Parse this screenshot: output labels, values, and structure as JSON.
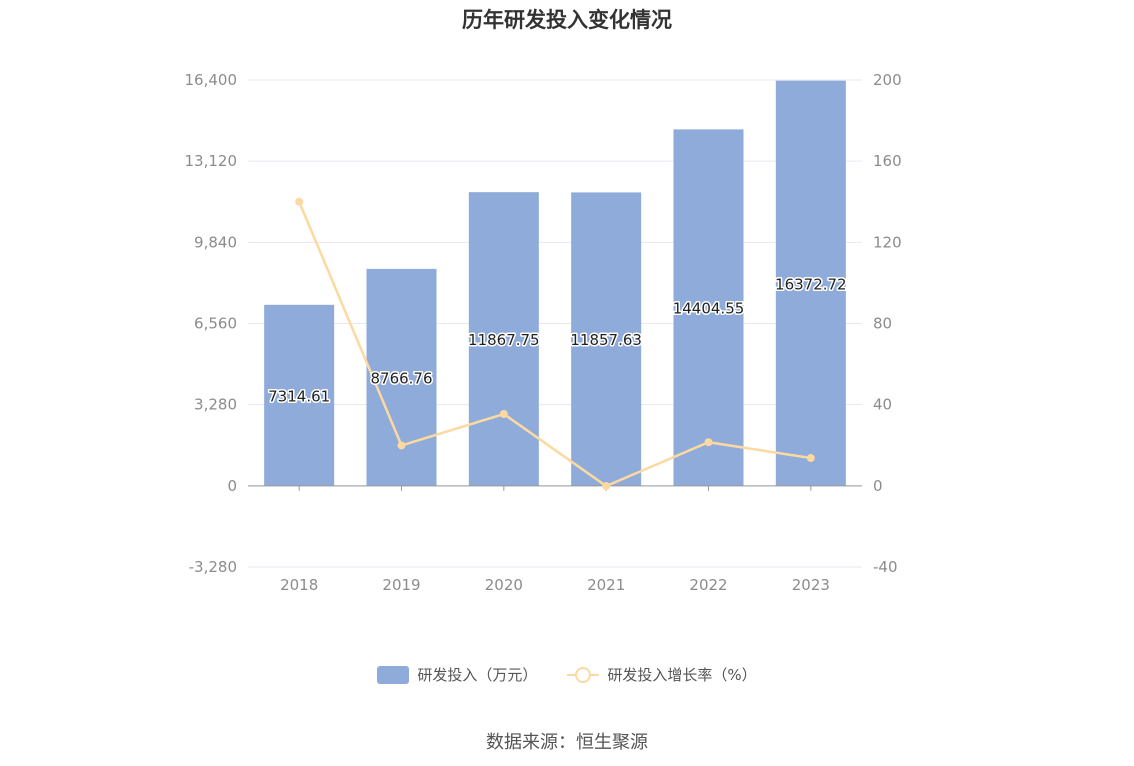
{
  "chart_data": {
    "type": "bar",
    "title": "历年研发投入变化情况",
    "categories": [
      "2018",
      "2019",
      "2020",
      "2021",
      "2022",
      "2023"
    ],
    "series": [
      {
        "name": "研发投入（万元）",
        "type": "bar",
        "axis": "left",
        "values": [
          7314.61,
          8766.76,
          11867.75,
          11857.63,
          14404.55,
          16372.72
        ],
        "labels": [
          "7314.61",
          "8766.76",
          "11867.75",
          "11857.63",
          "14404.55",
          "16372.72"
        ]
      },
      {
        "name": "研发投入增长率（%）",
        "type": "line",
        "axis": "right",
        "values": [
          140,
          19.9,
          35.4,
          -0.1,
          21.5,
          13.7
        ]
      }
    ],
    "y_left": {
      "ylim": [
        -3280,
        16400
      ],
      "ticks": [
        "-3,280",
        "0",
        "3,280",
        "6,560",
        "9,840",
        "13,120",
        "16,400"
      ]
    },
    "y_right": {
      "ylim": [
        -40,
        200
      ],
      "ticks": [
        "-40",
        "0",
        "40",
        "80",
        "120",
        "160",
        "200"
      ]
    },
    "grid": true,
    "legend_position": "bottom-center",
    "colors": {
      "bar": "#8eabd9",
      "line": "#fcd9a0",
      "grid": "#e6e9f2",
      "axis": "#999999"
    }
  },
  "source": "数据来源：恒生聚源"
}
